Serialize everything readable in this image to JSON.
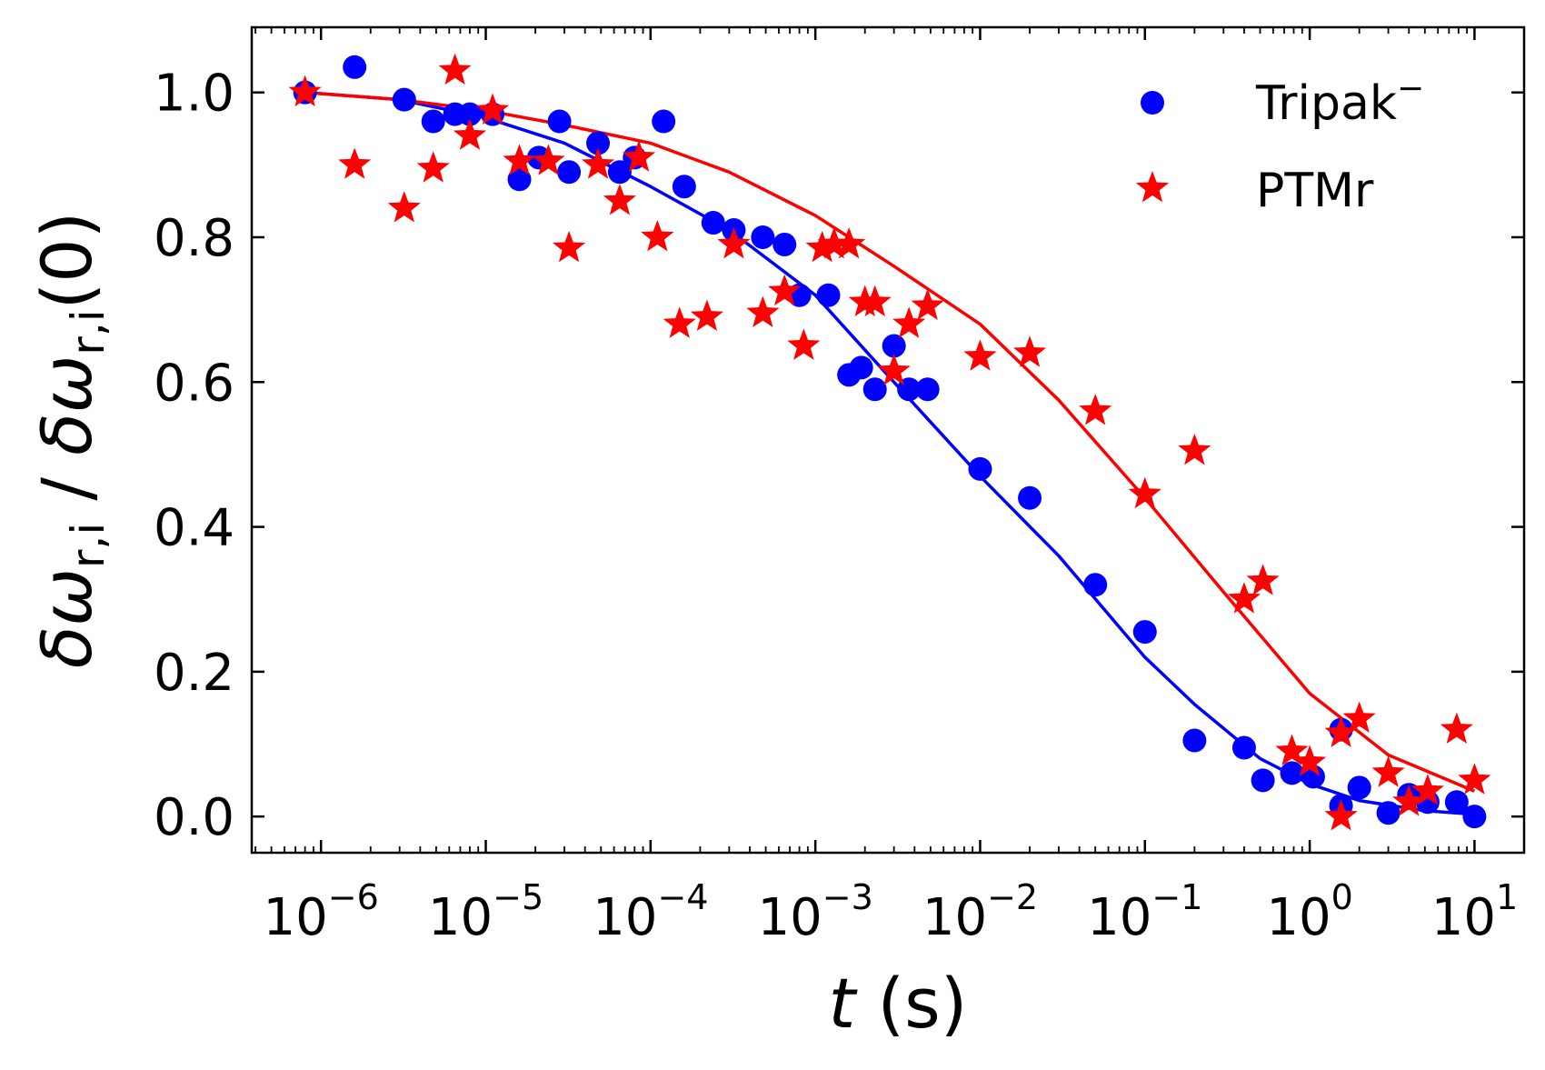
{
  "chart_data": {
    "type": "scatter",
    "title": "",
    "xlabel": "t (s)",
    "xlabel_var": "t",
    "xlabel_unit": "(s)",
    "ylabel": "δω_r,i / δω_r,i(0)",
    "ylabel_parts": {
      "symbol": "δω",
      "sub": "r,i",
      "sep": " / ",
      "suffix": "(0)"
    },
    "xscale": "log",
    "xlim": [
      3.8e-07,
      20
    ],
    "ylim": [
      -0.05,
      1.09
    ],
    "x_ticks": [
      {
        "value": 1e-06,
        "base": "10",
        "exp": "−6"
      },
      {
        "value": 1e-05,
        "base": "10",
        "exp": "−5"
      },
      {
        "value": 0.0001,
        "base": "10",
        "exp": "−4"
      },
      {
        "value": 0.001,
        "base": "10",
        "exp": "−3"
      },
      {
        "value": 0.01,
        "base": "10",
        "exp": "−2"
      },
      {
        "value": 0.1,
        "base": "10",
        "exp": "−1"
      },
      {
        "value": 1,
        "base": "10",
        "exp": "0"
      },
      {
        "value": 10,
        "base": "10",
        "exp": "1"
      }
    ],
    "y_ticks": [
      {
        "value": 0.0,
        "label": "0.0"
      },
      {
        "value": 0.2,
        "label": "0.2"
      },
      {
        "value": 0.4,
        "label": "0.4"
      },
      {
        "value": 0.6,
        "label": "0.6"
      },
      {
        "value": 0.8,
        "label": "0.8"
      },
      {
        "value": 1.0,
        "label": "1.0"
      }
    ],
    "legend_position": "top-right",
    "legend": [
      {
        "label": "Tripak",
        "sup": "−",
        "marker": "circle",
        "color": "#0000ff"
      },
      {
        "label": "PTMr",
        "sup": "",
        "marker": "star",
        "color": "#ff0000"
      }
    ],
    "series": [
      {
        "name": "Tripak−",
        "marker": "circle",
        "color": "#0000ff",
        "points": [
          [
            8e-07,
            1.0
          ],
          [
            1.6e-06,
            1.035
          ],
          [
            3.2e-06,
            0.99
          ],
          [
            4.8e-06,
            0.96
          ],
          [
            6.5e-06,
            0.97
          ],
          [
            8e-06,
            0.97
          ],
          [
            1.1e-05,
            0.97
          ],
          [
            1.6e-05,
            0.88
          ],
          [
            2.1e-05,
            0.91
          ],
          [
            2.8e-05,
            0.96
          ],
          [
            3.2e-05,
            0.89
          ],
          [
            4.8e-05,
            0.93
          ],
          [
            6.5e-05,
            0.89
          ],
          [
            8e-05,
            0.91
          ],
          [
            0.00012,
            0.96
          ],
          [
            0.00016,
            0.87
          ],
          [
            0.00024,
            0.82
          ],
          [
            0.00032,
            0.81
          ],
          [
            0.00048,
            0.8
          ],
          [
            0.00065,
            0.79
          ],
          [
            0.0008,
            0.72
          ],
          [
            0.0012,
            0.72
          ],
          [
            0.0016,
            0.61
          ],
          [
            0.0019,
            0.62
          ],
          [
            0.0023,
            0.59
          ],
          [
            0.003,
            0.65
          ],
          [
            0.0037,
            0.59
          ],
          [
            0.0048,
            0.59
          ],
          [
            0.01,
            0.48
          ],
          [
            0.02,
            0.44
          ],
          [
            0.05,
            0.32
          ],
          [
            0.1,
            0.255
          ],
          [
            0.2,
            0.105
          ],
          [
            0.4,
            0.095
          ],
          [
            0.52,
            0.05
          ],
          [
            0.78,
            0.06
          ],
          [
            1.05,
            0.055
          ],
          [
            1.55,
            0.12
          ],
          [
            1.55,
            0.015
          ],
          [
            2.0,
            0.04
          ],
          [
            3.0,
            0.005
          ],
          [
            4.0,
            0.03
          ],
          [
            5.2,
            0.02
          ],
          [
            7.8,
            0.02
          ],
          [
            10,
            0.0
          ]
        ],
        "fit": [
          [
            8e-07,
            1.0
          ],
          [
            3e-06,
            0.99
          ],
          [
            1e-05,
            0.965
          ],
          [
            3e-05,
            0.93
          ],
          [
            0.0001,
            0.87
          ],
          [
            0.0003,
            0.81
          ],
          [
            0.001,
            0.72
          ],
          [
            0.003,
            0.6
          ],
          [
            0.01,
            0.47
          ],
          [
            0.03,
            0.36
          ],
          [
            0.1,
            0.22
          ],
          [
            0.2,
            0.155
          ],
          [
            0.5,
            0.08
          ],
          [
            1,
            0.045
          ],
          [
            2,
            0.022
          ],
          [
            5,
            0.008
          ],
          [
            10,
            0.003
          ]
        ]
      },
      {
        "name": "PTMr",
        "marker": "star",
        "color": "#ff0000",
        "points": [
          [
            8e-07,
            1.0
          ],
          [
            1.6e-06,
            0.9
          ],
          [
            3.2e-06,
            0.84
          ],
          [
            4.8e-06,
            0.895
          ],
          [
            6.5e-06,
            1.03
          ],
          [
            8e-06,
            0.94
          ],
          [
            1.1e-05,
            0.975
          ],
          [
            1.6e-05,
            0.905
          ],
          [
            2.4e-05,
            0.905
          ],
          [
            3.2e-05,
            0.785
          ],
          [
            4.8e-05,
            0.9
          ],
          [
            6.5e-05,
            0.85
          ],
          [
            8.5e-05,
            0.91
          ],
          [
            0.00011,
            0.8
          ],
          [
            0.00015,
            0.68
          ],
          [
            0.00022,
            0.69
          ],
          [
            0.00032,
            0.79
          ],
          [
            0.00048,
            0.695
          ],
          [
            0.00065,
            0.725
          ],
          [
            0.00085,
            0.65
          ],
          [
            0.0011,
            0.785
          ],
          [
            0.0013,
            0.79
          ],
          [
            0.0016,
            0.79
          ],
          [
            0.002,
            0.71
          ],
          [
            0.0023,
            0.71
          ],
          [
            0.003,
            0.615
          ],
          [
            0.0037,
            0.68
          ],
          [
            0.0048,
            0.705
          ],
          [
            0.01,
            0.635
          ],
          [
            0.02,
            0.64
          ],
          [
            0.05,
            0.56
          ],
          [
            0.1,
            0.445
          ],
          [
            0.2,
            0.505
          ],
          [
            0.4,
            0.3
          ],
          [
            0.52,
            0.325
          ],
          [
            0.78,
            0.09
          ],
          [
            1.0,
            0.075
          ],
          [
            1.55,
            0.0
          ],
          [
            1.55,
            0.115
          ],
          [
            2.0,
            0.135
          ],
          [
            3.0,
            0.06
          ],
          [
            4.0,
            0.02
          ],
          [
            5.2,
            0.035
          ],
          [
            7.8,
            0.12
          ],
          [
            10,
            0.05
          ]
        ],
        "fit": [
          [
            8e-07,
            1.0
          ],
          [
            3e-06,
            0.99
          ],
          [
            1e-05,
            0.975
          ],
          [
            3e-05,
            0.955
          ],
          [
            0.0001,
            0.93
          ],
          [
            0.0003,
            0.89
          ],
          [
            0.001,
            0.83
          ],
          [
            0.003,
            0.76
          ],
          [
            0.01,
            0.68
          ],
          [
            0.03,
            0.575
          ],
          [
            0.1,
            0.44
          ],
          [
            0.3,
            0.31
          ],
          [
            1,
            0.17
          ],
          [
            3,
            0.085
          ],
          [
            10,
            0.035
          ]
        ]
      }
    ]
  }
}
